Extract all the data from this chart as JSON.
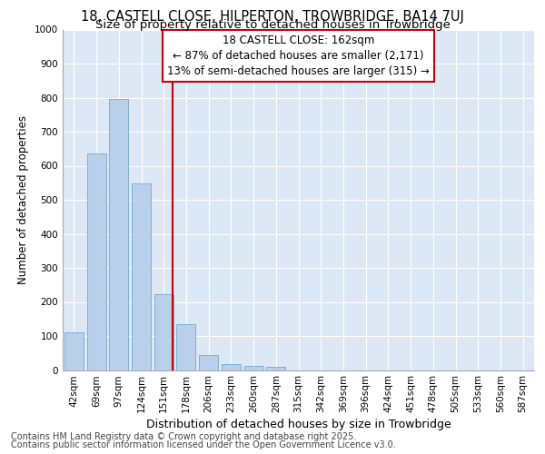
{
  "title1": "18, CASTELL CLOSE, HILPERTON, TROWBRIDGE, BA14 7UJ",
  "title2": "Size of property relative to detached houses in Trowbridge",
  "xlabel": "Distribution of detached houses by size in Trowbridge",
  "ylabel": "Number of detached properties",
  "categories": [
    "42sqm",
    "69sqm",
    "97sqm",
    "124sqm",
    "151sqm",
    "178sqm",
    "206sqm",
    "233sqm",
    "260sqm",
    "287sqm",
    "315sqm",
    "342sqm",
    "369sqm",
    "396sqm",
    "424sqm",
    "451sqm",
    "478sqm",
    "505sqm",
    "533sqm",
    "560sqm",
    "587sqm"
  ],
  "values": [
    110,
    635,
    795,
    548,
    222,
    135,
    45,
    18,
    12,
    10,
    0,
    0,
    0,
    0,
    0,
    0,
    0,
    0,
    0,
    0,
    0
  ],
  "bar_color": "#b8d0ea",
  "bar_edge_color": "#6fa8d4",
  "bar_linewidth": 0.6,
  "red_line_color": "#cc0000",
  "annotation_title": "18 CASTELL CLOSE: 162sqm",
  "annotation_line1": "← 87% of detached houses are smaller (2,171)",
  "annotation_line2": "13% of semi-detached houses are larger (315) →",
  "annotation_box_color": "#ffffff",
  "annotation_box_edge": "#cc0000",
  "ylim": [
    0,
    1000
  ],
  "yticks": [
    0,
    100,
    200,
    300,
    400,
    500,
    600,
    700,
    800,
    900,
    1000
  ],
  "bg_color": "#dce8f5",
  "grid_color": "#ffffff",
  "footer1": "Contains HM Land Registry data © Crown copyright and database right 2025.",
  "footer2": "Contains public sector information licensed under the Open Government Licence v3.0.",
  "title1_fontsize": 10.5,
  "title2_fontsize": 9.5,
  "xlabel_fontsize": 9,
  "ylabel_fontsize": 8.5,
  "tick_fontsize": 7.5,
  "annotation_fontsize": 8.5,
  "footer_fontsize": 7
}
